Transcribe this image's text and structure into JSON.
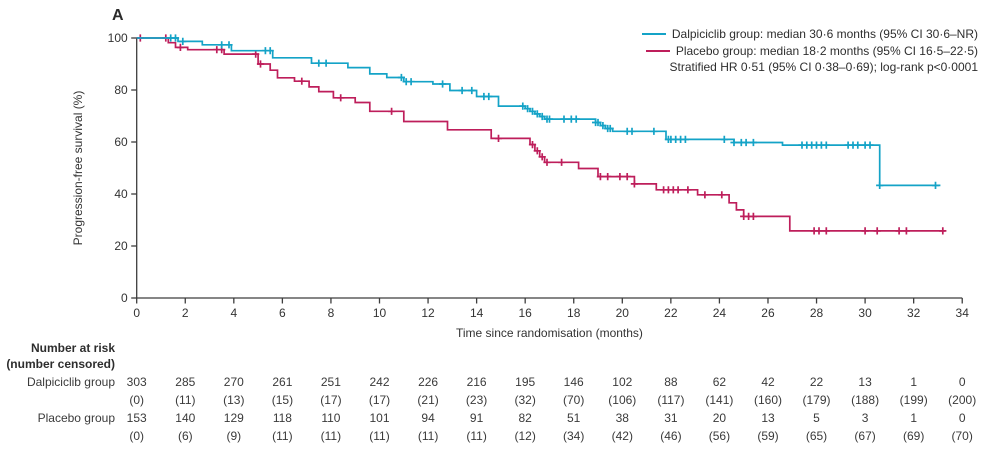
{
  "panel_label": "A",
  "colors": {
    "dalpiciclib": "#14A3C7",
    "placebo": "#BE1E5B",
    "axis": "#3d3d3d",
    "text": "#333333"
  },
  "legend": {
    "rows": [
      {
        "swatch": "dalpiciclib",
        "text": "Dalpiciclib group: median 30·6 months (95% CI 30·6–NR)"
      },
      {
        "swatch": "placebo",
        "text": "Placebo group: median 18·2 months (95% CI 16·5–22·5)"
      },
      {
        "swatch": null,
        "text": "Stratified HR 0·51 (95% CI 0·38–0·69); log-rank p<0·0001"
      }
    ]
  },
  "chart_data": {
    "type": "line",
    "subtype": "kaplan-meier-step",
    "xlabel": "Time since randomisation (months)",
    "ylabel": "Progression-free survival (%)",
    "xlim": [
      0,
      34
    ],
    "ylim": [
      0,
      100
    ],
    "xticks": [
      0,
      2,
      4,
      6,
      8,
      10,
      12,
      14,
      16,
      18,
      20,
      22,
      24,
      26,
      28,
      30,
      32,
      34
    ],
    "yticks": [
      0,
      20,
      40,
      60,
      80,
      100
    ],
    "grid": false,
    "legend_position": "top-right",
    "series": [
      {
        "name": "Dalpiciclib group",
        "color_key": "dalpiciclib",
        "median_months": "30.6",
        "steps": [
          [
            0,
            100
          ],
          [
            1.7,
            98.7
          ],
          [
            2.7,
            97.4
          ],
          [
            3.9,
            95.1
          ],
          [
            5.6,
            92.4
          ],
          [
            7.2,
            90.3
          ],
          [
            8.7,
            88.6
          ],
          [
            9.6,
            86.2
          ],
          [
            10.3,
            84.8
          ],
          [
            11.0,
            83.2
          ],
          [
            12.2,
            82.3
          ],
          [
            12.9,
            79.8
          ],
          [
            14.0,
            77.5
          ],
          [
            14.9,
            73.8
          ],
          [
            16.0,
            72.8
          ],
          [
            16.2,
            71.8
          ],
          [
            16.4,
            70.8
          ],
          [
            16.6,
            69.8
          ],
          [
            16.8,
            68.8
          ],
          [
            18.9,
            67.5
          ],
          [
            19.1,
            66.3
          ],
          [
            19.3,
            65.2
          ],
          [
            19.6,
            64.1
          ],
          [
            21.8,
            61.0
          ],
          [
            24.6,
            59.8
          ],
          [
            26.6,
            58.8
          ],
          [
            30.6,
            43.3
          ]
        ],
        "end_time": 33.1,
        "censor_times": [
          1.4,
          1.6,
          1.9,
          3.5,
          3.8,
          5.3,
          5.5,
          7.5,
          7.8,
          10.9,
          11.1,
          11.3,
          12.6,
          13.4,
          13.8,
          14.3,
          14.5,
          15.9,
          16.1,
          16.3,
          16.5,
          16.7,
          16.9,
          17.0,
          17.6,
          17.9,
          18.1,
          18.9,
          19.0,
          19.2,
          19.4,
          19.5,
          20.2,
          20.4,
          21.3,
          21.9,
          22.0,
          22.2,
          22.4,
          22.6,
          24.2,
          24.6,
          24.9,
          25.1,
          25.4,
          27.4,
          27.6,
          27.8,
          28.0,
          28.2,
          28.4,
          29.3,
          29.5,
          29.7,
          30.0,
          30.2,
          30.6,
          32.9
        ]
      },
      {
        "name": "Placebo group",
        "color_key": "placebo",
        "median_months": "18.2",
        "steps": [
          [
            0,
            100
          ],
          [
            1.3,
            98.2
          ],
          [
            1.6,
            96.4
          ],
          [
            2.1,
            95.5
          ],
          [
            3.6,
            93.8
          ],
          [
            5.0,
            90.0
          ],
          [
            5.5,
            87.6
          ],
          [
            5.8,
            84.7
          ],
          [
            6.5,
            83.4
          ],
          [
            7.1,
            81.2
          ],
          [
            7.5,
            79.4
          ],
          [
            8.1,
            77.0
          ],
          [
            9.0,
            75.2
          ],
          [
            9.6,
            71.8
          ],
          [
            11.0,
            67.9
          ],
          [
            12.8,
            64.7
          ],
          [
            14.6,
            61.4
          ],
          [
            16.2,
            59.0
          ],
          [
            16.4,
            56.6
          ],
          [
            16.6,
            54.3
          ],
          [
            16.8,
            52.2
          ],
          [
            18.2,
            49.8
          ],
          [
            19.0,
            46.7
          ],
          [
            20.5,
            43.9
          ],
          [
            21.4,
            41.6
          ],
          [
            23.1,
            39.7
          ],
          [
            24.4,
            36.6
          ],
          [
            24.7,
            33.9
          ],
          [
            25.0,
            31.4
          ],
          [
            26.9,
            25.8
          ]
        ],
        "end_time": 33.3,
        "censor_times": [
          0.15,
          1.2,
          1.8,
          3.3,
          3.5,
          4.9,
          5.1,
          6.8,
          8.4,
          10.5,
          14.9,
          16.3,
          16.5,
          16.7,
          16.9,
          17.5,
          19.1,
          19.4,
          19.9,
          20.2,
          20.5,
          21.7,
          21.9,
          22.1,
          22.3,
          22.7,
          23.4,
          24.1,
          25.0,
          25.2,
          25.4,
          27.9,
          28.1,
          28.4,
          30.0,
          30.5,
          31.4,
          31.7,
          33.2
        ]
      }
    ]
  },
  "risk_table": {
    "header_line1": "Number at risk",
    "header_line2": "(number censored)",
    "months": [
      0,
      2,
      4,
      6,
      8,
      10,
      12,
      14,
      16,
      18,
      20,
      22,
      24,
      26,
      28,
      30,
      32,
      34
    ],
    "rows": [
      {
        "label": "Dalpiciclib group",
        "at_risk": [
          "303",
          "285",
          "270",
          "261",
          "251",
          "242",
          "226",
          "216",
          "195",
          "146",
          "102",
          "88",
          "62",
          "42",
          "22",
          "13",
          "1",
          "0"
        ],
        "censored": [
          "(0)",
          "(11)",
          "(13)",
          "(15)",
          "(17)",
          "(17)",
          "(21)",
          "(23)",
          "(32)",
          "(70)",
          "(106)",
          "(117)",
          "(141)",
          "(160)",
          "(179)",
          "(188)",
          "(199)",
          "(200)"
        ]
      },
      {
        "label": "Placebo group",
        "at_risk": [
          "153",
          "140",
          "129",
          "118",
          "110",
          "101",
          "94",
          "91",
          "82",
          "51",
          "38",
          "31",
          "20",
          "13",
          "5",
          "3",
          "1",
          "0"
        ],
        "censored": [
          "(0)",
          "(6)",
          "(9)",
          "(11)",
          "(11)",
          "(11)",
          "(11)",
          "(11)",
          "(12)",
          "(34)",
          "(42)",
          "(46)",
          "(56)",
          "(59)",
          "(65)",
          "(67)",
          "(69)",
          "(70)"
        ]
      }
    ]
  }
}
